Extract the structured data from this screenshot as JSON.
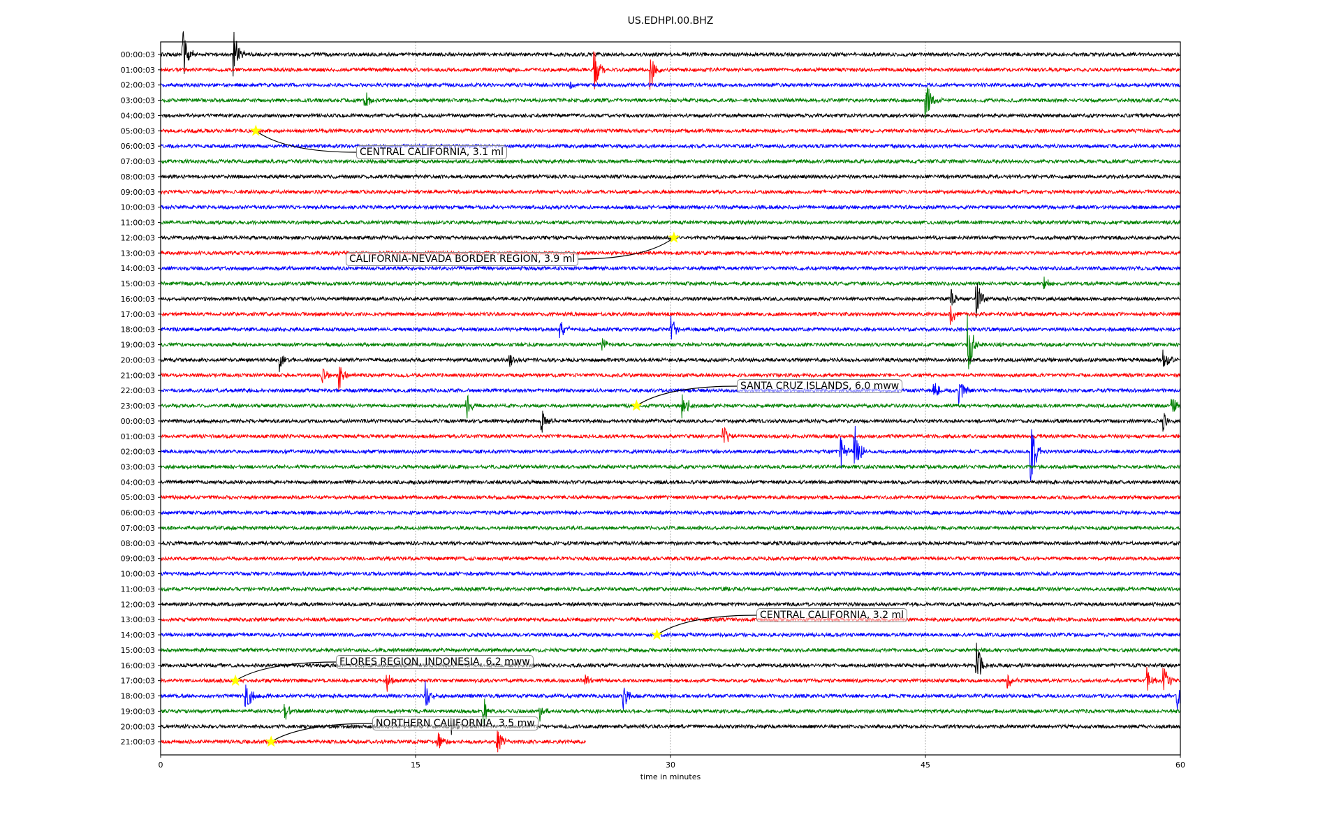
{
  "chart_data": {
    "type": "line",
    "title": "US.EDHPI.00.BHZ",
    "xlabel": "time in minutes",
    "ylabel": "",
    "xlim": [
      0,
      60
    ],
    "xticks": [
      "0",
      "15",
      "30",
      "45",
      "60"
    ],
    "xtick_values": [
      0,
      15,
      30,
      45,
      60
    ],
    "grid": "vertical dotted at 15-minute ticks",
    "colors": [
      "#000000",
      "#ff0000",
      "#0000ff",
      "#008000"
    ],
    "row_labels": [
      "00:00:03",
      "01:00:03",
      "02:00:03",
      "03:00:03",
      "04:00:03",
      "05:00:03",
      "06:00:03",
      "07:00:03",
      "08:00:03",
      "09:00:03",
      "10:00:03",
      "11:00:03",
      "12:00:03",
      "13:00:03",
      "14:00:03",
      "15:00:03",
      "16:00:03",
      "17:00:03",
      "18:00:03",
      "19:00:03",
      "20:00:03",
      "21:00:03",
      "22:00:03",
      "23:00:03",
      "00:00:03",
      "01:00:03",
      "02:00:03",
      "03:00:03",
      "04:00:03",
      "05:00:03",
      "06:00:03",
      "07:00:03",
      "08:00:03",
      "09:00:03",
      "10:00:03",
      "11:00:03",
      "12:00:03",
      "13:00:03",
      "14:00:03",
      "15:00:03",
      "16:00:03",
      "17:00:03",
      "18:00:03",
      "19:00:03",
      "20:00:03",
      "21:00:03"
    ],
    "last_row_end_minute": 25,
    "signal_bursts": [
      [
        0,
        1.3,
        2.2
      ],
      [
        0,
        4.3,
        2.0
      ],
      [
        1,
        25.5,
        1.8
      ],
      [
        1,
        28.8,
        2.0
      ],
      [
        2,
        24,
        0.6
      ],
      [
        3,
        12,
        0.9
      ],
      [
        3,
        45,
        2.2
      ],
      [
        15,
        52,
        0.6
      ],
      [
        16,
        46.5,
        0.8
      ],
      [
        16,
        48,
        1.6
      ],
      [
        17,
        46.5,
        0.8
      ],
      [
        18,
        23.5,
        0.8
      ],
      [
        18,
        30,
        1.2
      ],
      [
        19,
        26,
        1.0
      ],
      [
        19,
        47.5,
        2.5
      ],
      [
        20,
        7,
        0.8
      ],
      [
        20,
        20.5,
        0.6
      ],
      [
        20,
        59,
        0.8
      ],
      [
        21,
        9.5,
        0.8
      ],
      [
        21,
        10.5,
        1.2
      ],
      [
        22,
        45.5,
        1.0
      ],
      [
        22,
        47,
        1.2
      ],
      [
        23,
        18,
        1.0
      ],
      [
        23,
        30.7,
        1.3
      ],
      [
        23,
        59.5,
        0.8
      ],
      [
        24,
        22.4,
        1.2
      ],
      [
        24,
        59,
        0.8
      ],
      [
        25,
        33.1,
        1.1
      ],
      [
        26,
        40,
        1.5
      ],
      [
        26,
        40.8,
        2.3
      ],
      [
        26,
        51.2,
        3.0
      ],
      [
        40,
        48,
        2.0
      ],
      [
        41,
        13.3,
        0.9
      ],
      [
        41,
        25,
        0.6
      ],
      [
        41,
        49.8,
        0.7
      ],
      [
        41,
        58,
        1.3
      ],
      [
        41,
        59,
        1.3
      ],
      [
        42,
        5,
        1.5
      ],
      [
        42,
        15.6,
        1.0
      ],
      [
        42,
        27.2,
        1.1
      ],
      [
        42,
        59.8,
        1.1
      ],
      [
        43,
        19,
        1.0
      ],
      [
        43,
        22.3,
        0.8
      ],
      [
        43,
        7.3,
        0.8
      ],
      [
        44,
        17.1,
        0.8
      ],
      [
        45,
        16.3,
        0.8
      ],
      [
        45,
        19.8,
        1.0
      ]
    ],
    "events": [
      {
        "row": 5,
        "minute": 5.6,
        "label": "CENTRAL CALIFORNIA, 3.1 ml"
      },
      {
        "row": 12,
        "minute": 30.2,
        "label": "CALIFORNIA-NEVADA BORDER REGION, 3.9 ml"
      },
      {
        "row": 23,
        "minute": 28.0,
        "label": "SANTA CRUZ ISLANDS, 6.0 mww"
      },
      {
        "row": 38,
        "minute": 29.2,
        "label": "CENTRAL CALIFORNIA, 3.2 ml"
      },
      {
        "row": 41,
        "minute": 4.4,
        "label": "FLORES REGION, INDONESIA, 6.2 mww"
      },
      {
        "row": 45,
        "minute": 6.5,
        "label": "NORTHERN CALIFORNIA, 3.5 mw"
      }
    ],
    "event_marker_color": "#ffff00"
  }
}
